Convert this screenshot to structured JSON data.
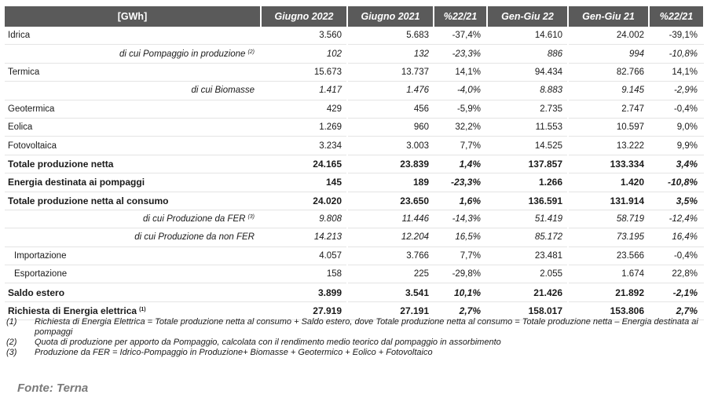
{
  "table": {
    "headers": [
      "[GWh]",
      "Giugno 2022",
      "Giugno 2021",
      "%22/21",
      "Gen-Giu 22",
      "Gen-Giu 21",
      "%22/21"
    ],
    "rows": [
      {
        "label": "Idrica",
        "sup": "",
        "style": "normal",
        "align": "left",
        "values": [
          "3.560",
          "5.683",
          "-37,4%",
          "14.610",
          "24.002",
          "-39,1%"
        ]
      },
      {
        "label": "di cui Pompaggio in produzione",
        "sup": "(2)",
        "style": "italic",
        "align": "right",
        "values": [
          "102",
          "132",
          "-23,3%",
          "886",
          "994",
          "-10,8%"
        ]
      },
      {
        "label": "Termica",
        "sup": "",
        "style": "normal",
        "align": "left",
        "values": [
          "15.673",
          "13.737",
          "14,1%",
          "94.434",
          "82.766",
          "14,1%"
        ]
      },
      {
        "label": "di cui Biomasse",
        "sup": "",
        "style": "italic",
        "align": "right",
        "values": [
          "1.417",
          "1.476",
          "-4,0%",
          "8.883",
          "9.145",
          "-2,9%"
        ]
      },
      {
        "label": "Geotermica",
        "sup": "",
        "style": "normal",
        "align": "left",
        "values": [
          "429",
          "456",
          "-5,9%",
          "2.735",
          "2.747",
          "-0,4%"
        ]
      },
      {
        "label": "Eolica",
        "sup": "",
        "style": "normal",
        "align": "left",
        "values": [
          "1.269",
          "960",
          "32,2%",
          "11.553",
          "10.597",
          "9,0%"
        ]
      },
      {
        "label": "Fotovoltaica",
        "sup": "",
        "style": "normal",
        "align": "left",
        "values": [
          "3.234",
          "3.003",
          "7,7%",
          "14.525",
          "13.222",
          "9,9%"
        ]
      },
      {
        "label": "Totale produzione netta",
        "sup": "",
        "style": "bold",
        "align": "left",
        "values": [
          "24.165",
          "23.839",
          "1,4%",
          "137.857",
          "133.334",
          "3,4%"
        ]
      },
      {
        "label": "Energia destinata ai pompaggi",
        "sup": "",
        "style": "bold",
        "align": "left",
        "values": [
          "145",
          "189",
          "-23,3%",
          "1.266",
          "1.420",
          "-10,8%"
        ]
      },
      {
        "label": "Totale produzione netta al consumo",
        "sup": "",
        "style": "bold",
        "align": "left",
        "values": [
          "24.020",
          "23.650",
          "1,6%",
          "136.591",
          "131.914",
          "3,5%"
        ]
      },
      {
        "label": "di cui Produzione da FER",
        "sup": "(3)",
        "style": "italic",
        "align": "right",
        "values": [
          "9.808",
          "11.446",
          "-14,3%",
          "51.419",
          "58.719",
          "-12,4%"
        ]
      },
      {
        "label": "di cui Produzione da non FER",
        "sup": "",
        "style": "italic",
        "align": "right",
        "values": [
          "14.213",
          "12.204",
          "16,5%",
          "85.172",
          "73.195",
          "16,4%"
        ]
      },
      {
        "label": "Importazione",
        "sup": "",
        "style": "normal",
        "align": "indent",
        "values": [
          "4.057",
          "3.766",
          "7,7%",
          "23.481",
          "23.566",
          "-0,4%"
        ]
      },
      {
        "label": "Esportazione",
        "sup": "",
        "style": "normal",
        "align": "indent",
        "values": [
          "158",
          "225",
          "-29,8%",
          "2.055",
          "1.674",
          "22,8%"
        ]
      },
      {
        "label": "Saldo estero",
        "sup": "",
        "style": "bold",
        "align": "left",
        "values": [
          "3.899",
          "3.541",
          "10,1%",
          "21.426",
          "21.892",
          "-2,1%"
        ]
      },
      {
        "label": "Richiesta di Energia elettrica",
        "sup": "(1)",
        "style": "bold",
        "align": "left",
        "values": [
          "27.919",
          "27.191",
          "2,7%",
          "158.017",
          "153.806",
          "2,7%"
        ]
      }
    ]
  },
  "notes": [
    {
      "key": "(1)",
      "text": "Richiesta di Energia Elettrica = Totale produzione netta al consumo + Saldo estero, dove Totale produzione netta al consumo = Totale produzione netta – Energia destinata ai pompaggi"
    },
    {
      "key": "(2)",
      "text": "Quota di produzione per apporto da Pompaggio, calcolata con il rendimento medio teorico dal pompaggio in assorbimento"
    },
    {
      "key": "(3)",
      "text": "Produzione da FER = Idrico-Pompaggio in Produzione+ Biomasse + Geotermico + Eolico + Fotovoltaico"
    }
  ],
  "source": "Fonte: Terna"
}
